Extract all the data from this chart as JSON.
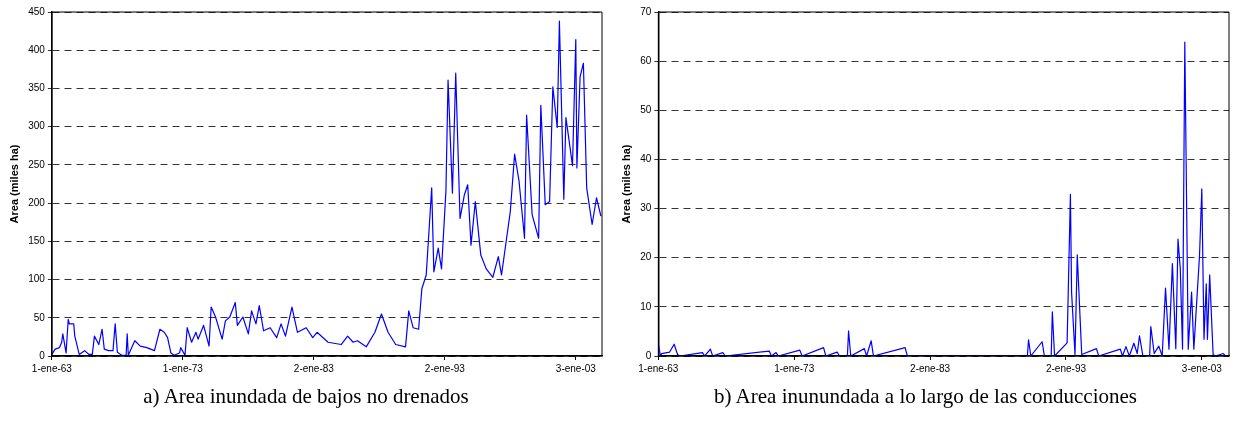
{
  "chart_data": [
    {
      "type": "line",
      "title": "a) Area inundada de bajos no drenados",
      "ylabel": "Area (miles ha)",
      "grid": "y",
      "xlim": [
        "1963-01-01",
        "2005-01-01"
      ],
      "xticks": [
        {
          "value": "1963-01-01",
          "label": "1-ene-63"
        },
        {
          "value": "1973-01-01",
          "label": "1-ene-73"
        },
        {
          "value": "1983-01-02",
          "label": "2-ene-83"
        },
        {
          "value": "1993-01-02",
          "label": "2-ene-93"
        },
        {
          "value": "2003-01-03",
          "label": "3-ene-03"
        }
      ],
      "ylim": [
        0,
        450
      ],
      "yticks": [
        0,
        50,
        100,
        150,
        200,
        250,
        300,
        350,
        400,
        450
      ],
      "series": [
        {
          "color": "#0000ff",
          "x": [
            "1963-01",
            "1963-04",
            "1963-08",
            "1963-10",
            "1963-11",
            "1964-02",
            "1964-04",
            "1964-05",
            "1964-09",
            "1964-10",
            "1965-02",
            "1965-07",
            "1965-11",
            "1966-02",
            "1966-04",
            "1966-08",
            "1966-11",
            "1967-01",
            "1967-05",
            "1967-09",
            "1967-11",
            "1968-01",
            "1968-05",
            "1968-09",
            "1968-10",
            "1968-11",
            "1969-05",
            "1969-10",
            "1970-04",
            "1970-11",
            "1971-04",
            "1971-08",
            "1971-11",
            "1972-02",
            "1972-05",
            "1972-10",
            "1972-11",
            "1973-03",
            "1973-05",
            "1973-09",
            "1974-01",
            "1974-03",
            "1974-08",
            "1975-01",
            "1975-03",
            "1975-07",
            "1976-01",
            "1976-04",
            "1976-08",
            "1977-01",
            "1977-03",
            "1977-08",
            "1978-01",
            "1978-04",
            "1978-08",
            "1978-11",
            "1979-03",
            "1979-09",
            "1980-03",
            "1980-07",
            "1980-11",
            "1981-05",
            "1981-10",
            "1982-06",
            "1982-12",
            "1983-04",
            "1984-02",
            "1985-02",
            "1985-08",
            "1986-01",
            "1986-05",
            "1987-01",
            "1987-09",
            "1988-03",
            "1988-09",
            "1989-04",
            "1990-01",
            "1990-04",
            "1990-08",
            "1991-01",
            "1991-04",
            "1991-08",
            "1992-01",
            "1992-03",
            "1992-07",
            "1992-10",
            "1993-02",
            "1993-04",
            "1993-08",
            "1993-11",
            "1994-03",
            "1994-07",
            "1994-10",
            "1995-01",
            "1995-05",
            "1995-10",
            "1996-03",
            "1996-09",
            "1997-02",
            "1997-05",
            "1998-01",
            "1998-05",
            "1998-09",
            "1999-02",
            "1999-04",
            "1999-09",
            "2000-03",
            "2000-05",
            "2000-09",
            "2001-01",
            "2001-04",
            "2001-08",
            "2001-10",
            "2002-02",
            "2002-04",
            "2002-10",
            "2003-01",
            "2003-02",
            "2003-05",
            "2003-08",
            "2003-11",
            "2004-04",
            "2004-08",
            "2004-12"
          ],
          "values": [
            2,
            9,
            11,
            18,
            29,
            4,
            48,
            42,
            42,
            26,
            2,
            7,
            2,
            2,
            26,
            15,
            35,
            9,
            7,
            7,
            42,
            5,
            1,
            1,
            29,
            1,
            20,
            13,
            11,
            7,
            35,
            31,
            24,
            4,
            1,
            4,
            11,
            1,
            37,
            18,
            31,
            22,
            40,
            13,
            64,
            51,
            22,
            46,
            51,
            70,
            40,
            51,
            29,
            59,
            42,
            66,
            33,
            37,
            24,
            42,
            26,
            64,
            31,
            37,
            24,
            31,
            18,
            15,
            26,
            18,
            20,
            12,
            31,
            55,
            31,
            15,
            12,
            59,
            37,
            35,
            88,
            106,
            220,
            110,
            141,
            114,
            216,
            361,
            213,
            370,
            180,
            211,
            224,
            145,
            202,
            132,
            114,
            103,
            130,
            106,
            189,
            264,
            229,
            154,
            315,
            185,
            154,
            328,
            198,
            202,
            352,
            299,
            438,
            205,
            312,
            249,
            414,
            246,
            365,
            383,
            220,
            172,
            207,
            183
          ]
        }
      ]
    },
    {
      "type": "line",
      "title": "b) Area inunundada a lo largo de las conducciones",
      "ylabel": "Area (miles ha)",
      "grid": "y",
      "xlim": [
        "1963-01-01",
        "2005-01-01"
      ],
      "xticks": [
        {
          "value": "1963-01-01",
          "label": "1-ene-63"
        },
        {
          "value": "1973-01-01",
          "label": "1-ene-73"
        },
        {
          "value": "1983-01-02",
          "label": "2-ene-83"
        },
        {
          "value": "1993-01-02",
          "label": "2-ene-93"
        },
        {
          "value": "2003-01-03",
          "label": "3-ene-03"
        }
      ],
      "ylim": [
        0,
        70
      ],
      "yticks": [
        0,
        10,
        20,
        30,
        40,
        50,
        60,
        70
      ],
      "series": [
        {
          "color": "#0000ff",
          "x": [
            "1963-01",
            "1963-03",
            "1963-04",
            "1963-11",
            "1964-03",
            "1964-06",
            "1964-08",
            "1966-04",
            "1966-06",
            "1966-11",
            "1967-01",
            "1967-10",
            "1967-12",
            "1971-03",
            "1971-05",
            "1971-09",
            "1971-11",
            "1973-06",
            "1973-08",
            "1975-03",
            "1975-05",
            "1976-03",
            "1976-05",
            "1976-12",
            "1977-01",
            "1977-03",
            "1978-03",
            "1978-05",
            "1978-09",
            "1978-11",
            "1981-03",
            "1981-05",
            "1990-03",
            "1990-04",
            "1990-06",
            "1991-04",
            "1991-06",
            "1991-12",
            "1992-01",
            "1992-03",
            "1993-01",
            "1993-02",
            "1993-05",
            "1993-06",
            "1993-09",
            "1993-11",
            "1994-03",
            "1995-04",
            "1995-06",
            "1997-01",
            "1997-03",
            "1997-06",
            "1997-09",
            "1998-01",
            "1998-04",
            "1998-06",
            "1998-09",
            "1999-03",
            "1999-04",
            "1999-07",
            "1999-11",
            "2000-02",
            "2000-05",
            "2000-08",
            "2000-11",
            "2001-02",
            "2001-04",
            "2001-06",
            "2001-08",
            "2001-10",
            "2002-01",
            "2002-04",
            "2002-06",
            "2002-11",
            "2003-01",
            "2003-03",
            "2003-05",
            "2003-06",
            "2003-08",
            "2003-11",
            "2004-01",
            "2004-08",
            "2004-10",
            "2005-01"
          ],
          "values": [
            2.4,
            0,
            0.5,
            0.8,
            2.4,
            0.3,
            0,
            0.7,
            0,
            1.4,
            0,
            0.7,
            0,
            1,
            0,
            0.7,
            0,
            1.2,
            0,
            1.7,
            0,
            0.8,
            0,
            0,
            5.1,
            0,
            1.5,
            0,
            3.1,
            0,
            1.7,
            0,
            0,
            3.3,
            0,
            2.9,
            0,
            0,
            9,
            0,
            2.4,
            2.7,
            32.9,
            13,
            0.3,
            20.6,
            0.3,
            1.5,
            0,
            1.4,
            0,
            1.9,
            0,
            2.6,
            0.5,
            4.1,
            0,
            0,
            6,
            0.5,
            2,
            0,
            13.8,
            1.4,
            18.8,
            1.5,
            23.8,
            17.8,
            1.4,
            63.9,
            1.4,
            13,
            1.4,
            20.5,
            34,
            3.4,
            14.7,
            3.4,
            16.5,
            0.3,
            0,
            0.5,
            0,
            0
          ]
        }
      ]
    }
  ]
}
